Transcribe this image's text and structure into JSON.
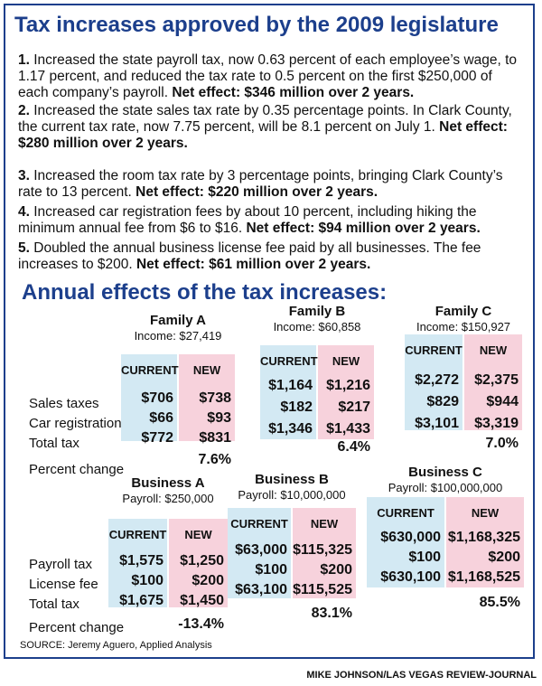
{
  "title": "Tax increases approved by the 2009 legislature",
  "items": [
    {
      "num": "1.",
      "text": "Increased the state payroll tax, now 0.63 percent of each employee’s wage, to 1.17 percent, and reduced the tax rate to 0.5 percent on the first $250,000 of each company’s payroll.",
      "effect": "Net effect: $346 million over 2 years."
    },
    {
      "num": "2.",
      "text": "Increased the state sales tax rate by 0.35 percentage points. In Clark County, the current tax rate, now 7.75 percent, will be 8.1 percent on July 1.",
      "effect": "Net effect: $280 million over 2 years."
    },
    {
      "num": "3.",
      "text": "Increased the room tax rate by 3 percentage points, bringing Clark County’s rate to 13 percent.",
      "effect": "Net effect: $220 million over 2 years."
    },
    {
      "num": "4.",
      "text": "Increased car registration fees by about 10 percent, including hiking the minimum annual fee from $6 to $16.",
      "effect": "Net effect: $94 million over 2 years."
    },
    {
      "num": "5.",
      "text": "Doubled the annual business license fee paid by all businesses. The fee increases to $200.",
      "effect": "Net effect: $61 million over 2 years."
    }
  ],
  "section_title": "Annual effects of the tax increases:",
  "family_rows": [
    "Sales taxes",
    "Car registration",
    "Total tax",
    "Percent change"
  ],
  "families": [
    {
      "name": "Family A",
      "income": "Income: $27,419",
      "current_label": "CURRENT",
      "new_label": "NEW",
      "current": [
        "$706",
        "$66",
        "$772"
      ],
      "new": [
        "$738",
        "$93",
        "$831"
      ],
      "change": "7.6%"
    },
    {
      "name": "Family B",
      "income": "Income: $60,858",
      "current_label": "CURRENT",
      "new_label": "NEW",
      "current": [
        "$1,164",
        "$182",
        "$1,346"
      ],
      "new": [
        "$1,216",
        "$217",
        "$1,433"
      ],
      "change": "6.4%"
    },
    {
      "name": "Family C",
      "income": "Income: $150,927",
      "current_label": "CURRENT",
      "new_label": "NEW",
      "current": [
        "$2,272",
        "$829",
        "$3,101"
      ],
      "new": [
        "$2,375",
        "$944",
        "$3,319"
      ],
      "change": "7.0%"
    }
  ],
  "business_rows": [
    "Payroll tax",
    "License fee",
    "Total tax",
    "Percent change"
  ],
  "businesses": [
    {
      "name": "Business A",
      "payroll": "Payroll: $250,000",
      "current_label": "CURRENT",
      "new_label": "NEW",
      "current": [
        "$1,575",
        "$100",
        "$1,675"
      ],
      "new": [
        "$1,250",
        "$200",
        "$1,450"
      ],
      "change": "-13.4%"
    },
    {
      "name": "Business B",
      "payroll": "Payroll: $10,000,000",
      "current_label": "CURRENT",
      "new_label": "NEW",
      "current": [
        "$63,000",
        "$100",
        "$63,100"
      ],
      "new": [
        "$115,325",
        "$200",
        "$115,525"
      ],
      "change": "83.1%"
    },
    {
      "name": "Business C",
      "payroll": "Payroll: $100,000,000",
      "current_label": "CURRENT",
      "new_label": "NEW",
      "current": [
        "$630,000",
        "$100",
        "$630,100"
      ],
      "new": [
        "$1,168,325",
        "$200",
        "$1,168,525"
      ],
      "change": "85.5%"
    }
  ],
  "source": "SOURCE: Jeremy Aguero, Applied Analysis",
  "credit": "MIKE JOHNSON/LAS VEGAS REVIEW-JOURNAL"
}
